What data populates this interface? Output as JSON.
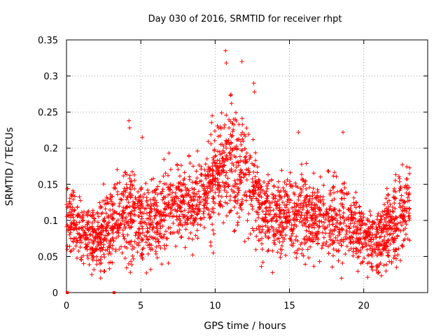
{
  "chart_data": {
    "type": "scatter",
    "title": "Day 030 of 2016, SRMTID for receiver rhpt",
    "xlabel": "GPS time / hours",
    "ylabel": "SRMTID / TECUs",
    "xlim": [
      0,
      24.3
    ],
    "ylim": [
      0,
      0.35
    ],
    "xticks": [
      0,
      5,
      10,
      15,
      20
    ],
    "xtick_labels": [
      "0",
      "5",
      "10",
      "15",
      "20"
    ],
    "yticks": [
      0,
      0.05,
      0.1,
      0.15,
      0.2,
      0.25,
      0.3,
      0.35
    ],
    "ytick_labels": [
      "0",
      "0.05",
      "0.1",
      "0.15",
      "0.2",
      "0.25",
      "0.3",
      "0.35"
    ],
    "grid": true,
    "marker": "plus",
    "color": "#ff0000",
    "zero_markers": [
      {
        "x": 0.05,
        "y": 0.0
      },
      {
        "x": 3.2,
        "y": 0.0
      }
    ],
    "envelope": [
      {
        "t": 0.0,
        "center": 0.105,
        "spread": 0.035
      },
      {
        "t": 1.0,
        "center": 0.085,
        "spread": 0.035
      },
      {
        "t": 2.0,
        "center": 0.075,
        "spread": 0.035
      },
      {
        "t": 3.0,
        "center": 0.095,
        "spread": 0.04
      },
      {
        "t": 4.0,
        "center": 0.115,
        "spread": 0.05
      },
      {
        "t": 5.0,
        "center": 0.105,
        "spread": 0.045
      },
      {
        "t": 6.0,
        "center": 0.1,
        "spread": 0.04
      },
      {
        "t": 7.0,
        "center": 0.115,
        "spread": 0.045
      },
      {
        "t": 8.0,
        "center": 0.125,
        "spread": 0.04
      },
      {
        "t": 9.0,
        "center": 0.125,
        "spread": 0.04
      },
      {
        "t": 10.0,
        "center": 0.155,
        "spread": 0.055
      },
      {
        "t": 11.0,
        "center": 0.175,
        "spread": 0.065
      },
      {
        "t": 12.0,
        "center": 0.165,
        "spread": 0.06
      },
      {
        "t": 13.0,
        "center": 0.12,
        "spread": 0.045
      },
      {
        "t": 14.0,
        "center": 0.1,
        "spread": 0.04
      },
      {
        "t": 15.0,
        "center": 0.11,
        "spread": 0.045
      },
      {
        "t": 16.0,
        "center": 0.11,
        "spread": 0.045
      },
      {
        "t": 17.0,
        "center": 0.1,
        "spread": 0.04
      },
      {
        "t": 18.0,
        "center": 0.105,
        "spread": 0.045
      },
      {
        "t": 19.0,
        "center": 0.095,
        "spread": 0.04
      },
      {
        "t": 20.0,
        "center": 0.08,
        "spread": 0.035
      },
      {
        "t": 21.0,
        "center": 0.07,
        "spread": 0.035
      },
      {
        "t": 22.0,
        "center": 0.1,
        "spread": 0.045
      },
      {
        "t": 23.0,
        "center": 0.125,
        "spread": 0.04
      }
    ],
    "outliers": [
      {
        "x": 10.7,
        "y": 0.335
      },
      {
        "x": 10.75,
        "y": 0.318
      },
      {
        "x": 11.8,
        "y": 0.32
      },
      {
        "x": 12.6,
        "y": 0.29
      },
      {
        "x": 12.65,
        "y": 0.278
      },
      {
        "x": 11.1,
        "y": 0.262
      },
      {
        "x": 4.2,
        "y": 0.238
      },
      {
        "x": 4.25,
        "y": 0.228
      },
      {
        "x": 5.1,
        "y": 0.215
      },
      {
        "x": 9.8,
        "y": 0.245
      },
      {
        "x": 15.6,
        "y": 0.222
      },
      {
        "x": 18.6,
        "y": 0.222
      },
      {
        "x": 18.5,
        "y": 0.02
      },
      {
        "x": 4.3,
        "y": 0.028
      },
      {
        "x": 1.7,
        "y": 0.025
      },
      {
        "x": 2.3,
        "y": 0.03
      },
      {
        "x": 21.0,
        "y": 0.028
      },
      {
        "x": 21.5,
        "y": 0.03
      }
    ]
  }
}
